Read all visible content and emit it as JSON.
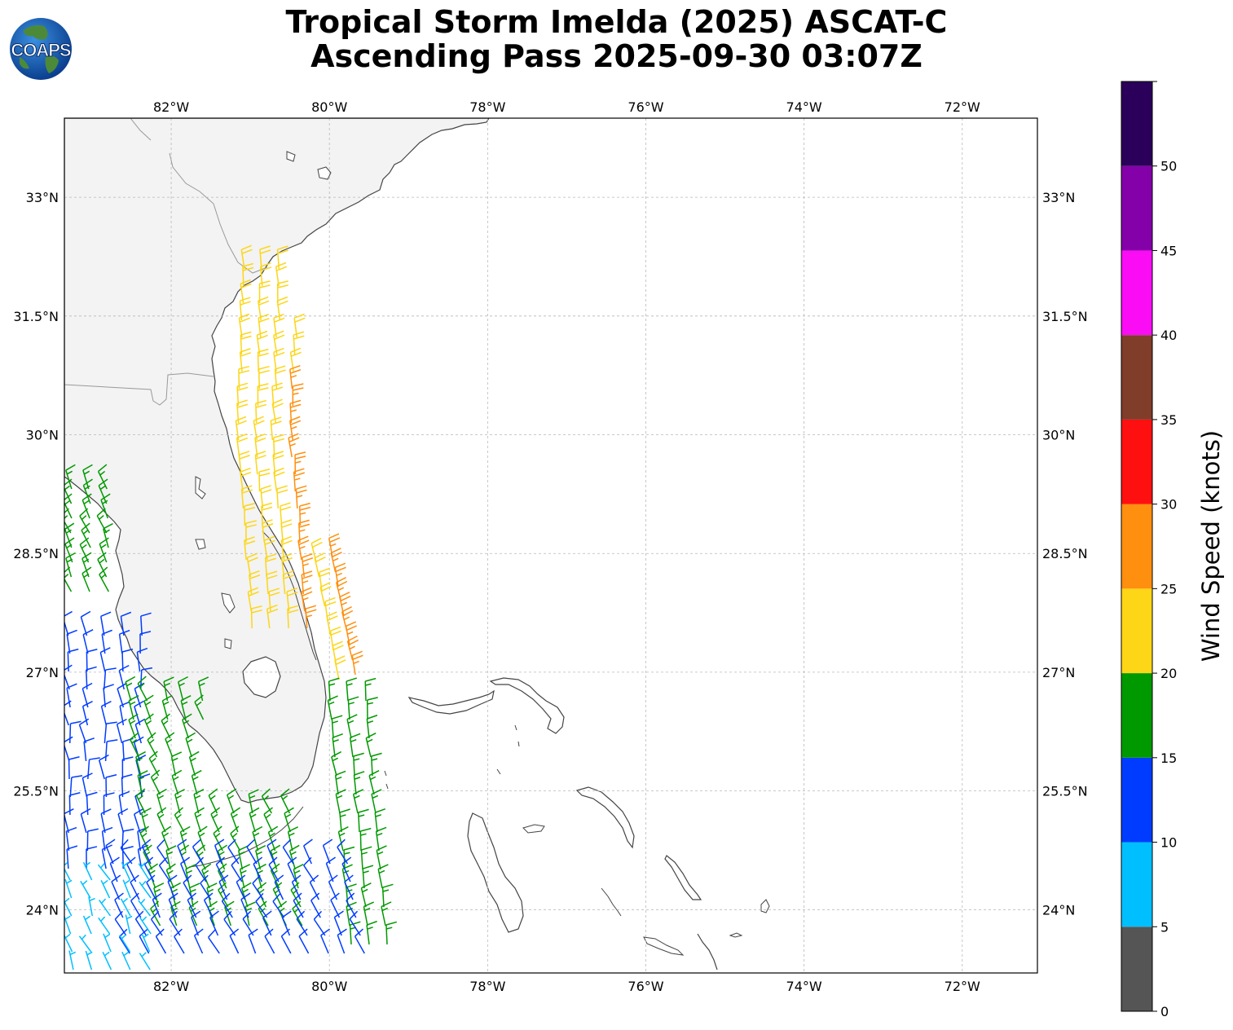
{
  "title": {
    "line1": "Tropical Storm Imelda (2025) ASCAT-C",
    "line2": "Ascending Pass 2025-09-30 03:07Z"
  },
  "logo": {
    "text": "COAPS",
    "icon": "globe-logo-icon"
  },
  "map": {
    "lon_ticks": [
      "82°W",
      "80°W",
      "78°W",
      "76°W",
      "74°W",
      "72°W"
    ],
    "lat_ticks": [
      "33°N",
      "31.5°N",
      "30°N",
      "28.5°N",
      "27°N",
      "25.5°N",
      "24°N"
    ],
    "extent": {
      "lon": [
        -83.35,
        -71.05
      ],
      "lat": [
        23.2,
        34.0
      ]
    },
    "gridlines": true,
    "coastline_color": "#444444",
    "border_color": "#999999"
  },
  "colorbar": {
    "label": "Wind Speed (knots)",
    "ticks": [
      "0",
      "5",
      "10",
      "15",
      "20",
      "25",
      "30",
      "35",
      "40",
      "45",
      "50"
    ],
    "bins": [
      {
        "min": 0,
        "max": 5,
        "color": "#555555"
      },
      {
        "min": 5,
        "max": 10,
        "color": "#00bfff"
      },
      {
        "min": 10,
        "max": 15,
        "color": "#003cff"
      },
      {
        "min": 15,
        "max": 20,
        "color": "#009900"
      },
      {
        "min": 20,
        "max": 25,
        "color": "#fcd617"
      },
      {
        "min": 25,
        "max": 30,
        "color": "#ff8f0e"
      },
      {
        "min": 30,
        "max": 35,
        "color": "#ff1010"
      },
      {
        "min": 35,
        "max": 40,
        "color": "#7f3d2a"
      },
      {
        "min": 40,
        "max": 45,
        "color": "#fa0cf4"
      },
      {
        "min": 45,
        "max": 50,
        "color": "#8400a8"
      },
      {
        "min": 50,
        "max": 55,
        "color": "#2a005a"
      }
    ]
  }
}
